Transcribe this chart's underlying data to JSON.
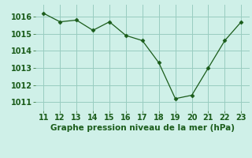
{
  "x": [
    11,
    12,
    13,
    14,
    15,
    16,
    17,
    18,
    19,
    20,
    21,
    22,
    23
  ],
  "y": [
    1016.2,
    1015.7,
    1015.8,
    1015.2,
    1015.7,
    1014.9,
    1014.6,
    1013.3,
    1011.2,
    1011.4,
    1013.0,
    1014.6,
    1015.7
  ],
  "line_color": "#1a5c1a",
  "marker": "D",
  "marker_size": 2.5,
  "bg_color": "#cff0e8",
  "grid_color": "#99ccc0",
  "xlabel": "Graphe pression niveau de la mer (hPa)",
  "xlabel_color": "#1a5c1a",
  "xlabel_fontsize": 7.5,
  "tick_color": "#1a5c1a",
  "tick_fontsize": 7,
  "ylim": [
    1010.5,
    1016.7
  ],
  "xlim": [
    10.5,
    23.5
  ],
  "yticks": [
    1011,
    1012,
    1013,
    1014,
    1015,
    1016
  ],
  "xticks": [
    11,
    12,
    13,
    14,
    15,
    16,
    17,
    18,
    19,
    20,
    21,
    22,
    23
  ]
}
